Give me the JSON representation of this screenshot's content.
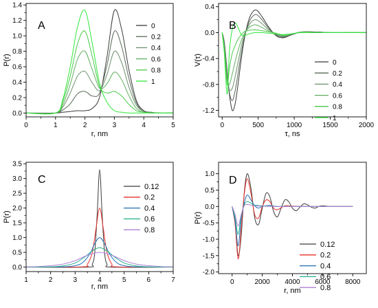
{
  "chart_data": [
    {
      "type": "line",
      "panel_label": "A",
      "xlabel": "r, nm",
      "ylabel": "P(r)",
      "xlim": [
        0,
        5
      ],
      "ylim": [
        -0.05,
        1.42
      ],
      "xticks": [
        0,
        1,
        2,
        3,
        4,
        5
      ],
      "yticks": [
        0.0,
        0.2,
        0.4,
        0.6,
        0.8,
        1.0,
        1.2,
        1.4
      ],
      "ytick_labels": [
        "0.0",
        "0.2",
        "0.4",
        "0.6",
        "0.8",
        "1.0",
        "1.2",
        "1.4"
      ],
      "grid": false,
      "legend_position": "right",
      "series": [
        {
          "name": "0",
          "color": "#3a3a3a",
          "x": [
            0,
            1.0,
            1.25,
            1.5,
            1.75,
            2.0,
            2.25,
            2.5,
            2.75,
            3.0,
            3.25,
            3.5,
            3.75,
            4.0,
            4.25,
            4.5,
            5.0
          ],
          "y": [
            0,
            0,
            0.01,
            0.02,
            0.03,
            0.03,
            0.06,
            0.21,
            0.73,
            1.33,
            1.08,
            0.55,
            0.16,
            0.03,
            0.01,
            0,
            0
          ]
        },
        {
          "name": "0.2",
          "color": "#5a6a5a",
          "x": [
            0,
            1.0,
            1.25,
            1.5,
            1.75,
            2.0,
            2.25,
            2.5,
            2.75,
            3.0,
            3.25,
            3.5,
            3.75,
            4.0,
            4.25,
            4.5,
            5.0
          ],
          "y": [
            0,
            0,
            0.04,
            0.12,
            0.25,
            0.28,
            0.22,
            0.26,
            0.62,
            1.06,
            0.86,
            0.44,
            0.13,
            0.02,
            0.01,
            0,
            0
          ]
        },
        {
          "name": "0.4",
          "color": "#6b8f6b",
          "x": [
            0,
            1.0,
            1.25,
            1.5,
            1.75,
            2.0,
            2.25,
            2.5,
            2.75,
            3.0,
            3.25,
            3.5,
            3.75,
            4.0,
            4.25,
            4.5,
            5.0
          ],
          "y": [
            0,
            0,
            0.08,
            0.26,
            0.48,
            0.54,
            0.39,
            0.29,
            0.5,
            0.8,
            0.65,
            0.33,
            0.1,
            0.02,
            0.01,
            0,
            0
          ]
        },
        {
          "name": "0.6",
          "color": "#5fae5f",
          "x": [
            0,
            1.0,
            1.25,
            1.5,
            1.75,
            2.0,
            2.25,
            2.5,
            2.75,
            3.0,
            3.25,
            3.5,
            3.75,
            4.0,
            4.25,
            4.5,
            5.0
          ],
          "y": [
            0,
            0,
            0.11,
            0.37,
            0.7,
            0.8,
            0.56,
            0.32,
            0.38,
            0.53,
            0.43,
            0.22,
            0.06,
            0.01,
            0,
            0,
            0
          ]
        },
        {
          "name": "0.8",
          "color": "#47c847",
          "x": [
            0,
            1.0,
            1.25,
            1.5,
            1.75,
            2.0,
            2.25,
            2.5,
            2.75,
            3.0,
            3.25,
            3.5,
            3.75,
            4.0,
            4.25,
            4.5,
            5.0
          ],
          "y": [
            0,
            0,
            0.15,
            0.48,
            0.9,
            1.06,
            0.73,
            0.34,
            0.26,
            0.28,
            0.22,
            0.11,
            0.03,
            0.01,
            0,
            0,
            0
          ]
        },
        {
          "name": "1",
          "color": "#2ee83a",
          "x": [
            0,
            1.0,
            1.25,
            1.5,
            1.75,
            2.0,
            2.25,
            2.5,
            2.75,
            3.0,
            3.25,
            3.5,
            3.75,
            4.0,
            4.25,
            4.5,
            5.0
          ],
          "y": [
            0,
            0,
            0.18,
            0.6,
            1.12,
            1.33,
            0.9,
            0.38,
            0.14,
            0.03,
            0.01,
            0,
            0,
            0,
            0,
            0,
            0
          ]
        }
      ]
    },
    {
      "type": "line",
      "panel_label": "B",
      "xlabel": "τ, ns",
      "ylabel": "V(τ)",
      "xlim": [
        -50,
        2000
      ],
      "ylim": [
        -1.3,
        0.45
      ],
      "xticks": [
        0,
        500,
        1000,
        1500,
        2000
      ],
      "yticks": [
        -1.2,
        -0.8,
        -0.4,
        0.0,
        0.4
      ],
      "ytick_labels": [
        "-1.2",
        "-0.8",
        "-0.4",
        "0.0",
        "0.4"
      ],
      "grid": false,
      "legend_position": "right",
      "series": [
        {
          "name": "0",
          "color": "#3a3a3a",
          "x": [
            0,
            30,
            70,
            100,
            140,
            180,
            220,
            260,
            300,
            350,
            400,
            470,
            550,
            650,
            750,
            850,
            950,
            1100,
            1300,
            1500,
            1700,
            2000
          ],
          "y": [
            0,
            -0.15,
            -0.6,
            -0.95,
            -1.2,
            -1.1,
            -0.8,
            -0.45,
            -0.15,
            0.12,
            0.28,
            0.35,
            0.25,
            0.08,
            -0.05,
            -0.08,
            -0.04,
            0.01,
            0.01,
            0,
            0,
            0
          ]
        },
        {
          "name": "0.2",
          "color": "#5a6a5a",
          "x": [
            0,
            30,
            70,
            100,
            140,
            180,
            220,
            260,
            300,
            350,
            400,
            470,
            550,
            650,
            750,
            850,
            950,
            1100,
            1300,
            1500,
            1700,
            2000
          ],
          "y": [
            0,
            -0.17,
            -0.62,
            -0.92,
            -1.05,
            -0.9,
            -0.63,
            -0.35,
            -0.11,
            0.09,
            0.22,
            0.28,
            0.2,
            0.06,
            -0.04,
            -0.07,
            -0.03,
            0.01,
            0.01,
            0,
            0,
            0
          ]
        },
        {
          "name": "0.4",
          "color": "#6b8f6b",
          "x": [
            0,
            30,
            70,
            100,
            140,
            180,
            220,
            260,
            300,
            350,
            400,
            470,
            550,
            650,
            750,
            850,
            950,
            1100,
            1300,
            1500,
            1700,
            2000
          ],
          "y": [
            0,
            -0.2,
            -0.66,
            -0.88,
            -0.86,
            -0.68,
            -0.46,
            -0.24,
            -0.07,
            0.07,
            0.16,
            0.2,
            0.14,
            0.04,
            -0.03,
            -0.06,
            -0.03,
            0.01,
            0,
            0,
            0,
            0
          ]
        },
        {
          "name": "0.6",
          "color": "#5fae5f",
          "x": [
            0,
            30,
            70,
            100,
            140,
            180,
            220,
            260,
            300,
            350,
            400,
            470,
            550,
            650,
            750,
            850,
            950,
            1100,
            1300,
            1500,
            1700,
            2000
          ],
          "y": [
            0,
            -0.23,
            -0.72,
            -0.8,
            -0.64,
            -0.45,
            -0.28,
            -0.14,
            -0.03,
            0.05,
            0.1,
            0.12,
            0.08,
            0.02,
            -0.02,
            -0.05,
            -0.03,
            0.01,
            0,
            0,
            0,
            0
          ]
        },
        {
          "name": "0.8",
          "color": "#47c847",
          "x": [
            0,
            30,
            70,
            100,
            140,
            180,
            220,
            260,
            300,
            350,
            400,
            470,
            550,
            650,
            750,
            850,
            950,
            1100,
            1300,
            1500,
            1700,
            2000
          ],
          "y": [
            0,
            -0.27,
            -0.8,
            -0.55,
            -0.32,
            -0.2,
            -0.1,
            -0.04,
            0.01,
            0.03,
            0.04,
            0.04,
            0.03,
            0.01,
            -0.01,
            -0.04,
            -0.02,
            0,
            0,
            0,
            0,
            0
          ]
        },
        {
          "name": "1",
          "color": "#2ee83a",
          "x": [
            0,
            30,
            70,
            100,
            140,
            180,
            220,
            260,
            300,
            350,
            400,
            470,
            550,
            650,
            750,
            850,
            950,
            1100,
            1300,
            1500,
            1700,
            2000
          ],
          "y": [
            0,
            -0.32,
            -0.95,
            -0.3,
            0.05,
            0.15,
            0.08,
            -0.02,
            -0.05,
            -0.03,
            -0.01,
            0,
            0,
            -0.01,
            -0.02,
            -0.03,
            -0.02,
            0,
            0,
            0,
            0,
            0
          ]
        }
      ]
    },
    {
      "type": "line",
      "panel_label": "C",
      "xlabel": "r, nm",
      "ylabel": "P(r)",
      "xlim": [
        1,
        7
      ],
      "ylim": [
        -0.15,
        3.55
      ],
      "xticks": [
        1,
        2,
        3,
        4,
        5,
        6,
        7
      ],
      "yticks": [
        0.0,
        0.5,
        1.0,
        1.5,
        2.0,
        2.5,
        3.0,
        3.5
      ],
      "ytick_labels": [
        "0.0",
        "0.5",
        "1.0",
        "1.5",
        "2.0",
        "2.5",
        "3.0",
        "3.5"
      ],
      "grid": false,
      "legend_position": "right",
      "series": [
        {
          "name": "0.12",
          "color": "#3a3a3a",
          "x": [
            1.0,
            3.5,
            3.7,
            3.8,
            3.9,
            4.0,
            4.1,
            4.2,
            4.3,
            4.5,
            7.0
          ],
          "y": [
            0,
            0,
            0.1,
            0.5,
            1.8,
            3.3,
            1.8,
            0.5,
            0.1,
            0,
            0
          ]
        },
        {
          "name": "0.2",
          "color": "#e8302a",
          "x": [
            1.0,
            3.3,
            3.5,
            3.7,
            3.85,
            4.0,
            4.15,
            4.3,
            4.5,
            4.7,
            7.0
          ],
          "y": [
            0,
            0.01,
            0.1,
            0.5,
            1.3,
            2.0,
            1.3,
            0.5,
            0.1,
            0.01,
            0
          ]
        },
        {
          "name": "0.4",
          "color": "#1f6fb5",
          "x": [
            1.0,
            2.5,
            3.0,
            3.3,
            3.6,
            3.8,
            4.0,
            4.2,
            4.4,
            4.7,
            5.0,
            5.5,
            7.0
          ],
          "y": [
            0,
            0.01,
            0.05,
            0.15,
            0.45,
            0.8,
            1.0,
            0.8,
            0.45,
            0.15,
            0.05,
            0.01,
            0
          ]
        },
        {
          "name": "0.6",
          "color": "#1fae8a",
          "x": [
            1.0,
            2.0,
            2.5,
            3.0,
            3.4,
            3.7,
            4.0,
            4.3,
            4.6,
            5.0,
            5.5,
            6.0,
            7.0
          ],
          "y": [
            0,
            0.01,
            0.04,
            0.14,
            0.35,
            0.55,
            0.66,
            0.55,
            0.35,
            0.14,
            0.04,
            0.01,
            0
          ]
        },
        {
          "name": "0.8",
          "color": "#b07fd6",
          "x": [
            1.0,
            1.5,
            2.0,
            2.5,
            3.0,
            3.5,
            4.0,
            4.5,
            5.0,
            5.5,
            6.0,
            6.5,
            7.0
          ],
          "y": [
            0.01,
            0.02,
            0.05,
            0.1,
            0.22,
            0.4,
            0.5,
            0.4,
            0.22,
            0.1,
            0.05,
            0.02,
            0.01
          ]
        }
      ]
    },
    {
      "type": "line",
      "panel_label": "D",
      "xlabel": "r, nm",
      "ylabel": "P(r)",
      "xlim": [
        -900,
        8900
      ],
      "ylim": [
        -2.05,
        1.35
      ],
      "xticks": [
        0,
        2000,
        4000,
        6000,
        8000
      ],
      "yticks": [
        -2.0,
        -1.5,
        -1.0,
        -0.5,
        0.0,
        0.5,
        1.0
      ],
      "ytick_labels": [
        "-2.0",
        "-1.5",
        "-1.0",
        "-0.5",
        "0.0",
        "0.5",
        "1.0"
      ],
      "grid": false,
      "legend_position": "bottom-right",
      "series": [
        {
          "name": "0.12",
          "color": "#3a3a3a",
          "x": [
            0,
            200,
            400,
            600,
            800,
            1000,
            1250,
            1500,
            1750,
            2000,
            2250,
            2500,
            2750,
            3000,
            3250,
            3500,
            3750,
            4000,
            4250,
            4500,
            4750,
            5000,
            5250,
            5500,
            5750,
            6000,
            6500,
            7000,
            7500,
            8000
          ],
          "y": [
            0,
            -0.5,
            -1.5,
            -0.9,
            0.4,
            1.0,
            0.55,
            -0.35,
            -0.55,
            -0.05,
            0.4,
            0.3,
            -0.15,
            -0.32,
            -0.05,
            0.2,
            0.15,
            -0.05,
            -0.13,
            -0.02,
            0.08,
            0.05,
            -0.02,
            -0.05,
            0,
            0.02,
            0,
            0,
            0,
            0
          ]
        },
        {
          "name": "0.2",
          "color": "#e8302a",
          "x": [
            0,
            200,
            400,
            600,
            800,
            1000,
            1250,
            1500,
            1750,
            2000,
            2250,
            2500,
            2750,
            3000,
            3500,
            4000,
            5000,
            6000,
            8000
          ],
          "y": [
            0,
            -0.55,
            -1.6,
            -0.7,
            0.35,
            0.85,
            0.4,
            -0.25,
            -0.35,
            0,
            0.2,
            0.15,
            -0.05,
            -0.1,
            0.02,
            0.01,
            0,
            0,
            0
          ]
        },
        {
          "name": "0.4",
          "color": "#1f6fb5",
          "x": [
            0,
            200,
            400,
            600,
            800,
            1000,
            1250,
            1500,
            1750,
            2000,
            2500,
            3000,
            4000,
            5000,
            8000
          ],
          "y": [
            0,
            -0.45,
            -1.2,
            -0.4,
            0.1,
            0.35,
            0.2,
            0.02,
            -0.05,
            0,
            0.03,
            0,
            0,
            0,
            0
          ]
        },
        {
          "name": "0.6",
          "color": "#1fae8a",
          "x": [
            0,
            200,
            400,
            600,
            800,
            1000,
            1250,
            1500,
            2000,
            2500,
            3000,
            4000,
            5000,
            8000
          ],
          "y": [
            0,
            -0.35,
            -0.85,
            -0.3,
            0.05,
            0.15,
            0.1,
            0.04,
            0.02,
            0.01,
            0,
            0,
            0,
            0
          ]
        },
        {
          "name": "0.8",
          "color": "#b07fd6",
          "x": [
            0,
            200,
            400,
            600,
            800,
            1000,
            1250,
            1500,
            2000,
            3000,
            4000,
            5000,
            8000
          ],
          "y": [
            0,
            -0.25,
            -0.6,
            -0.25,
            0.02,
            0.06,
            0.04,
            0.02,
            0.01,
            0,
            0,
            0,
            0
          ]
        }
      ]
    }
  ]
}
